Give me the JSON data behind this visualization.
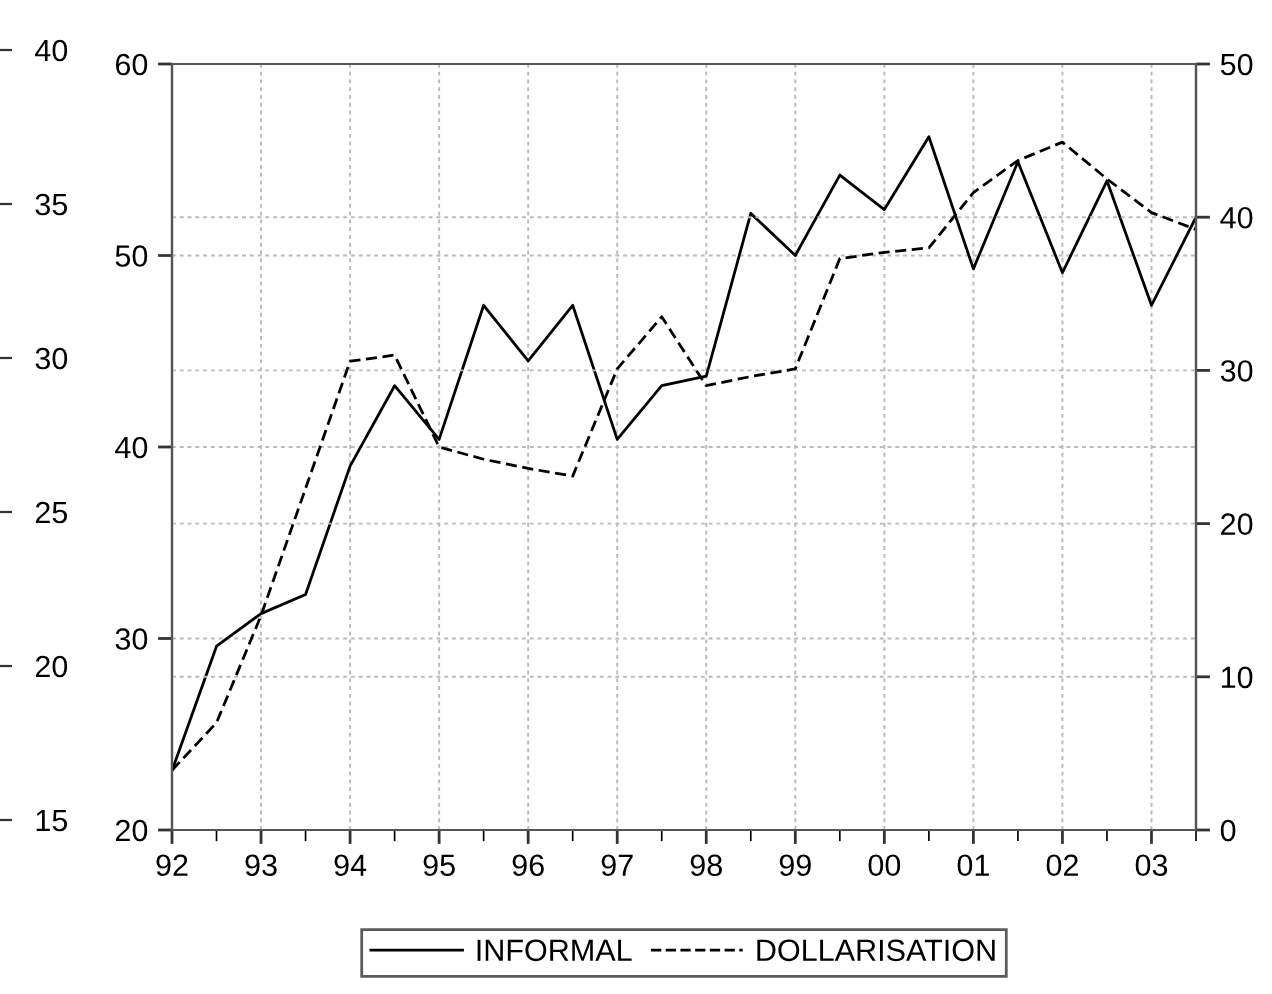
{
  "chart_data": {
    "type": "line",
    "x": [
      1992.0,
      1992.5,
      1993.0,
      1993.5,
      1994.0,
      1994.5,
      1995.0,
      1995.5,
      1996.0,
      1996.5,
      1997.0,
      1997.5,
      1998.0,
      1998.5,
      1999.0,
      1999.5,
      2000.0,
      2000.5,
      2001.0,
      2001.5,
      2002.0,
      2002.5,
      2003.0,
      2003.5
    ],
    "series": [
      {
        "name": "INFORMAL",
        "color": "#000000",
        "line_style": "solid",
        "values": [
          23.1,
          29.6,
          31.3,
          32.3,
          39.0,
          43.2,
          40.4,
          47.4,
          44.5,
          47.4,
          40.4,
          43.2,
          43.7,
          52.2,
          50.0,
          54.2,
          52.4,
          56.2,
          49.3,
          54.9,
          49.1,
          53.9,
          47.4,
          52.0
        ]
      },
      {
        "name": "DOLLARISATION",
        "color": "#000000",
        "line_style": "dashed",
        "axis": "y2",
        "values": [
          3.9,
          7.0,
          14.0,
          22.3,
          30.6,
          31.0,
          25.0,
          24.2,
          23.6,
          23.1,
          30.1,
          33.5,
          29.0,
          29.6,
          30.1,
          37.3,
          37.7,
          38.0,
          41.6,
          43.7,
          44.9,
          42.5,
          40.3,
          39.2
        ]
      }
    ],
    "xlim": [
      1992,
      2003.5
    ],
    "xticks": [
      {
        "value": 1992,
        "label": "92"
      },
      {
        "value": 1993,
        "label": "93"
      },
      {
        "value": 1994,
        "label": "94"
      },
      {
        "value": 1995,
        "label": "95"
      },
      {
        "value": 1996,
        "label": "96"
      },
      {
        "value": 1997,
        "label": "97"
      },
      {
        "value": 1998,
        "label": "98"
      },
      {
        "value": 1999,
        "label": "99"
      },
      {
        "value": 2000,
        "label": "00"
      },
      {
        "value": 2001,
        "label": "01"
      },
      {
        "value": 2002,
        "label": "02"
      },
      {
        "value": 2003,
        "label": "03"
      }
    ],
    "ylim": [
      20,
      60
    ],
    "yticks": [
      20,
      30,
      40,
      50,
      60
    ],
    "y2lim": [
      0,
      50
    ],
    "y2ticks": [
      0,
      10,
      20,
      30,
      40,
      50
    ],
    "y3lim": [
      15,
      40
    ],
    "y3ticks": [
      15,
      20,
      25,
      30,
      35,
      40
    ],
    "grid": true,
    "legend": "bottom",
    "marker": "none"
  }
}
